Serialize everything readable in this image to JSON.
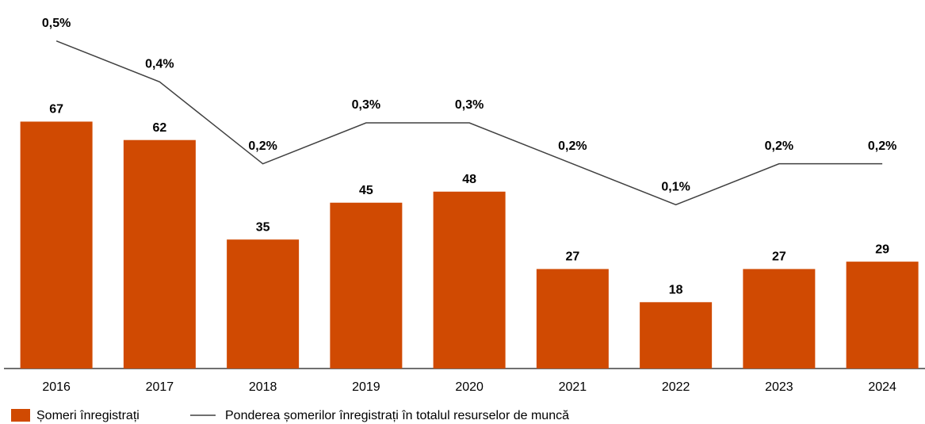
{
  "chart_data": {
    "type": "bar",
    "categories": [
      "2016",
      "2017",
      "2018",
      "2019",
      "2020",
      "2021",
      "2022",
      "2023",
      "2024"
    ],
    "ylim": [
      0,
      100
    ],
    "y2lim": [
      -0.3,
      0.6
    ],
    "series": [
      {
        "name": "Șomeri înregistrați",
        "type": "bar",
        "color": "#d04a02",
        "values": [
          67,
          62,
          35,
          45,
          48,
          27,
          18,
          27,
          29
        ]
      },
      {
        "name": "Ponderea șomerilor înregistrați în totalul resurselor de muncă",
        "type": "line",
        "axis": "y2",
        "color": "#404040",
        "values": [
          0.5,
          0.4,
          0.2,
          0.3,
          0.3,
          0.2,
          0.1,
          0.2,
          0.2
        ],
        "value_labels": [
          "0,5%",
          "0,4%",
          "0,2%",
          "0,3%",
          "0,3%",
          "0,2%",
          "0,1%",
          "0,2%",
          "0,2%"
        ]
      }
    ]
  }
}
